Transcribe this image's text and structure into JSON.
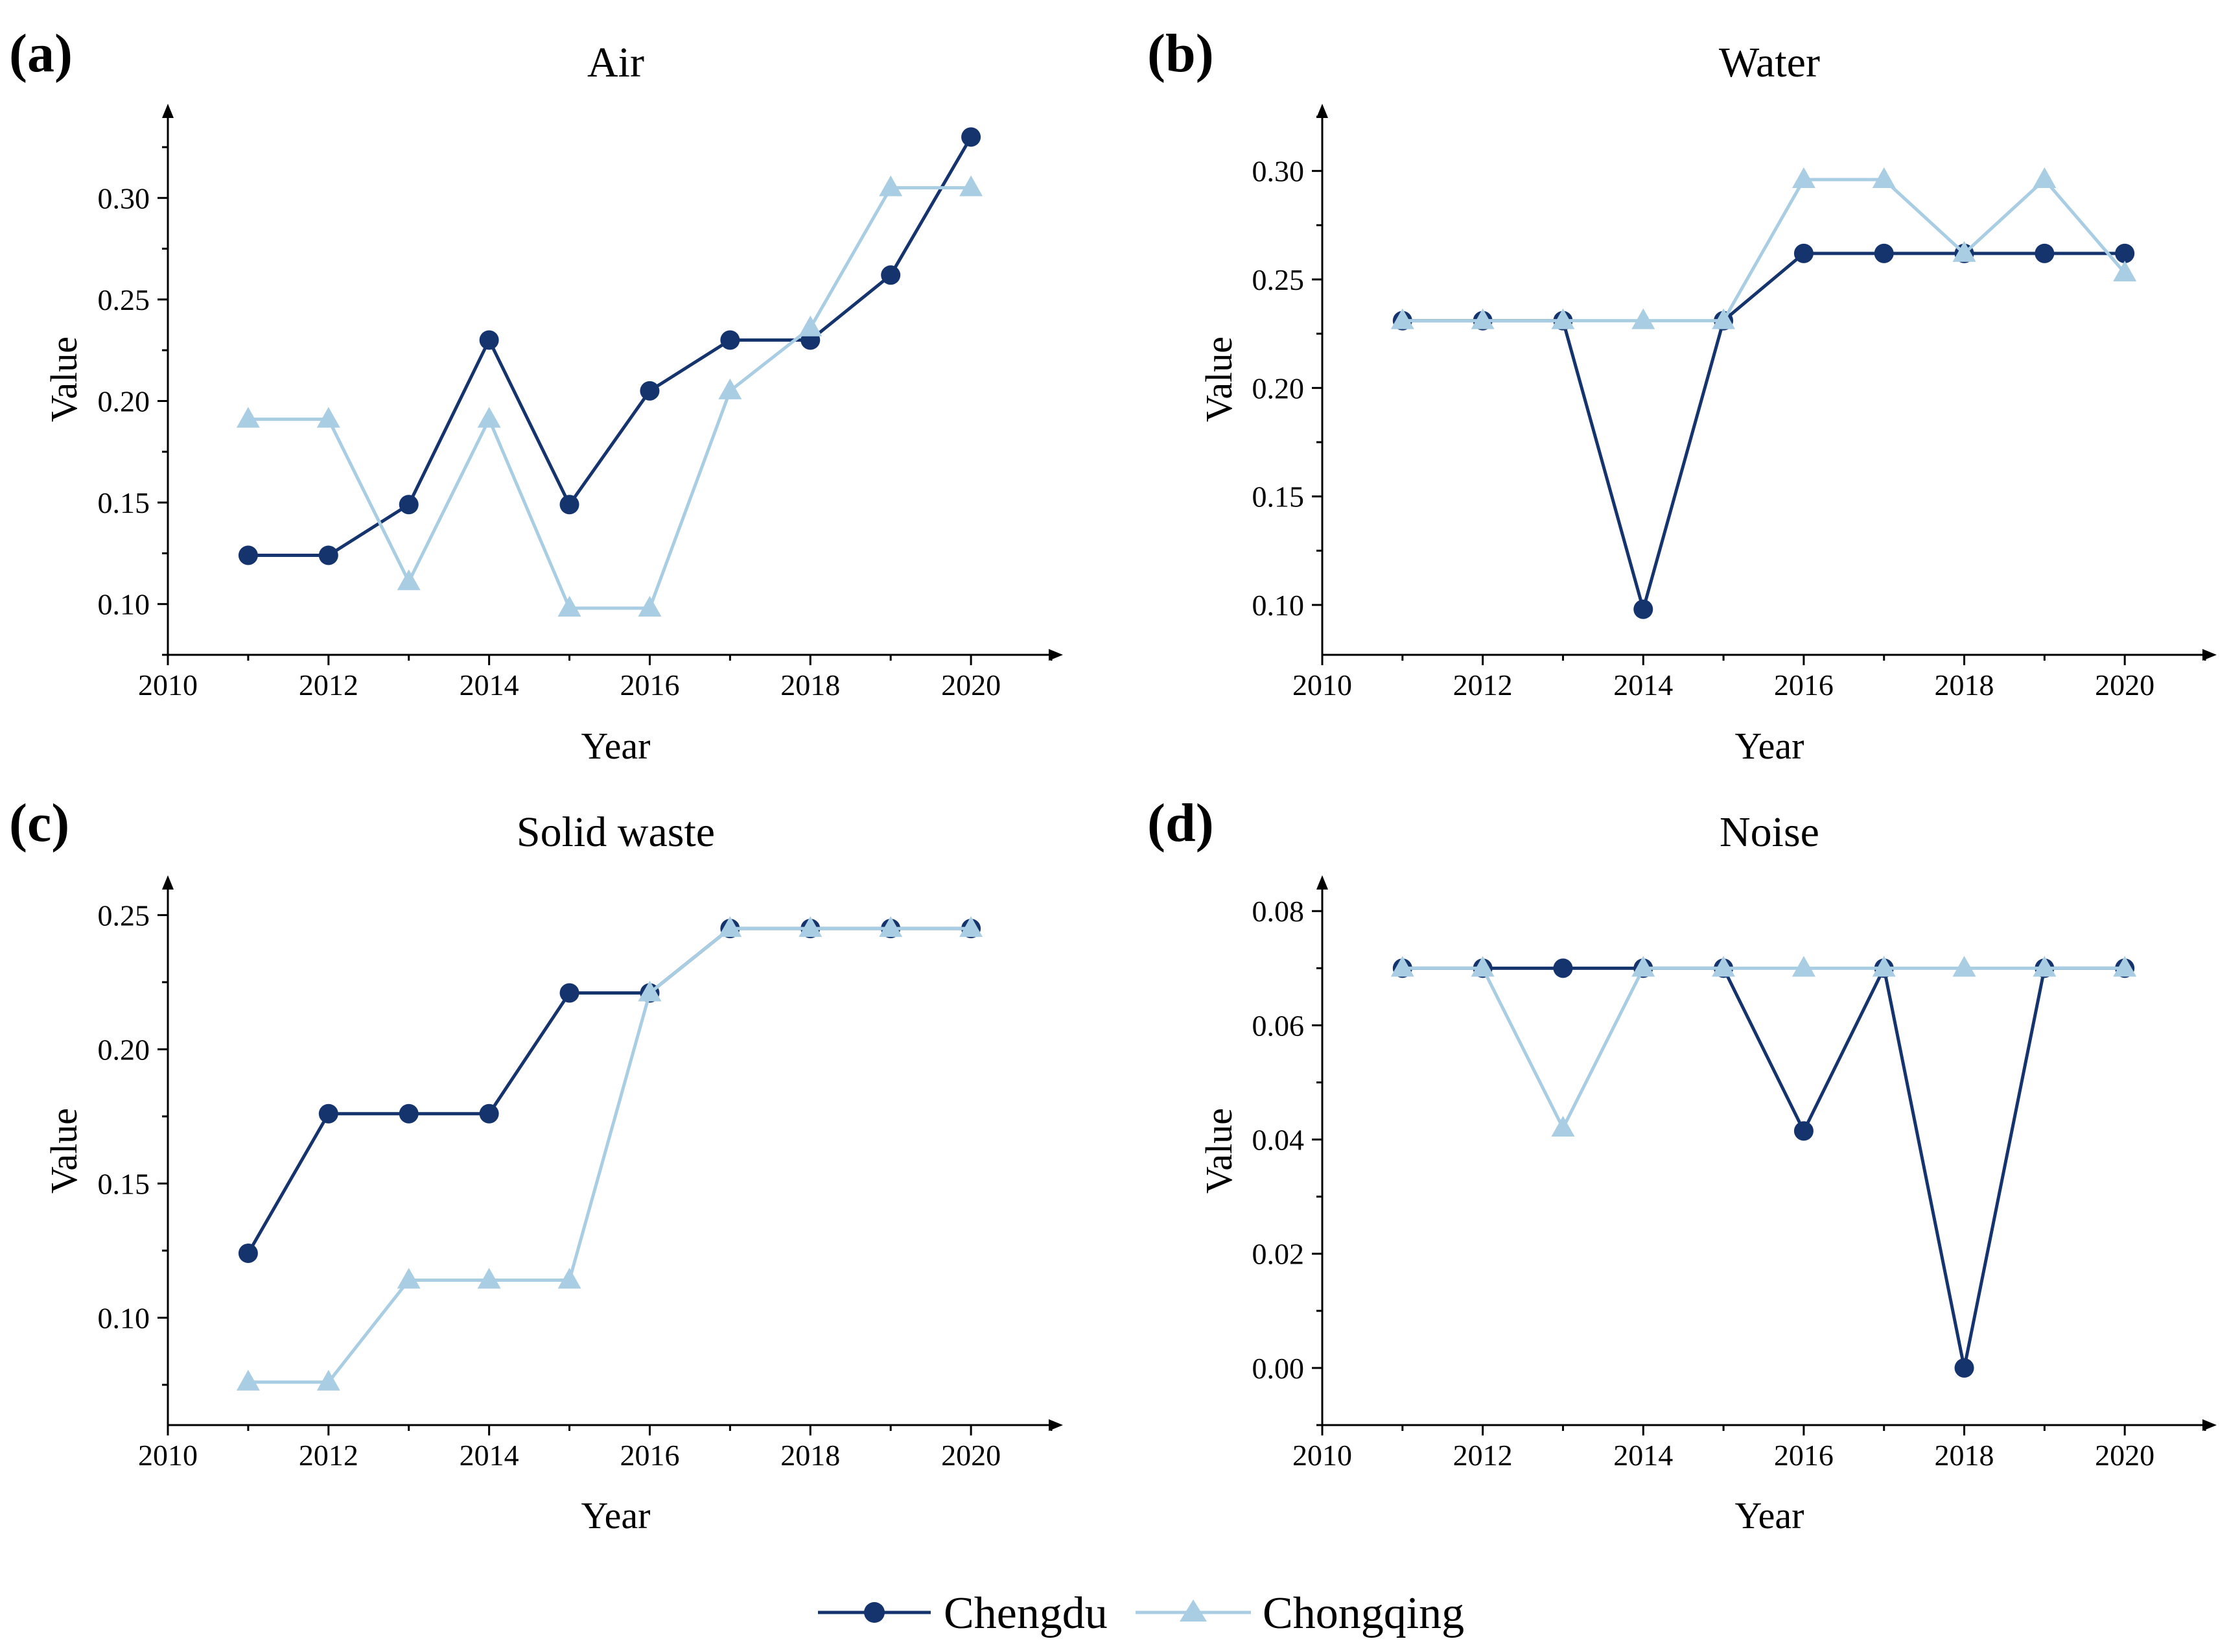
{
  "colors": {
    "chengdu": "#15346d",
    "chongqing": "#a9cde3",
    "axis": "#000000"
  },
  "legend": {
    "series": [
      {
        "name": "Chengdu",
        "marker": "circle"
      },
      {
        "name": "Chongqing",
        "marker": "triangle"
      }
    ]
  },
  "chart_data": [
    {
      "panel": "(a)",
      "type": "line",
      "title": "Air",
      "xlabel": "Year",
      "ylabel": "Value",
      "xlim": [
        2010,
        2021
      ],
      "xticks": [
        2010,
        2012,
        2014,
        2016,
        2018,
        2020
      ],
      "ylim": [
        0.075,
        0.34
      ],
      "yticks": [
        0.1,
        0.15,
        0.2,
        0.25,
        0.3
      ],
      "ytick_labels": [
        "0.10",
        "0.15",
        "0.20",
        "0.25",
        "0.30"
      ],
      "x": [
        2011,
        2012,
        2013,
        2014,
        2015,
        2016,
        2017,
        2018,
        2019,
        2020
      ],
      "series": [
        {
          "name": "Chengdu",
          "values": [
            0.124,
            0.124,
            0.149,
            0.23,
            0.149,
            0.205,
            0.23,
            0.23,
            0.262,
            0.33
          ]
        },
        {
          "name": "Chongqing",
          "values": [
            0.191,
            0.191,
            0.111,
            0.191,
            0.098,
            0.098,
            0.205,
            0.236,
            0.305,
            0.305
          ]
        }
      ]
    },
    {
      "panel": "(b)",
      "type": "line",
      "title": "Water",
      "xlabel": "Year",
      "ylabel": "Value",
      "xlim": [
        2010,
        2021
      ],
      "xticks": [
        2010,
        2012,
        2014,
        2016,
        2018,
        2020
      ],
      "ylim": [
        0.077,
        0.325
      ],
      "yticks": [
        0.1,
        0.15,
        0.2,
        0.25,
        0.3
      ],
      "ytick_labels": [
        "0.10",
        "0.15",
        "0.20",
        "0.25",
        "0.30"
      ],
      "x": [
        2011,
        2012,
        2013,
        2014,
        2015,
        2016,
        2017,
        2018,
        2019,
        2020
      ],
      "series": [
        {
          "name": "Chengdu",
          "values": [
            0.231,
            0.231,
            0.231,
            0.098,
            0.231,
            0.262,
            0.262,
            0.262,
            0.262,
            0.262
          ]
        },
        {
          "name": "Chongqing",
          "values": [
            0.231,
            0.231,
            0.231,
            0.231,
            0.231,
            0.296,
            0.296,
            0.262,
            0.296,
            0.253
          ]
        }
      ]
    },
    {
      "panel": "(c)",
      "type": "line",
      "title": "Solid waste",
      "xlabel": "Year",
      "ylabel": "Value",
      "xlim": [
        2010,
        2021
      ],
      "xticks": [
        2010,
        2012,
        2014,
        2016,
        2018,
        2020
      ],
      "ylim": [
        0.06,
        0.26
      ],
      "yticks": [
        0.1,
        0.15,
        0.2,
        0.25
      ],
      "ytick_labels": [
        "0.10",
        "0.15",
        "0.20",
        "0.25"
      ],
      "x": [
        2011,
        2012,
        2013,
        2014,
        2015,
        2016,
        2017,
        2018,
        2019,
        2020
      ],
      "series": [
        {
          "name": "Chengdu",
          "values": [
            0.124,
            0.176,
            0.176,
            0.176,
            0.221,
            0.221,
            0.245,
            0.245,
            0.245,
            0.245
          ]
        },
        {
          "name": "Chongqing",
          "values": [
            0.076,
            0.076,
            0.114,
            0.114,
            0.114,
            0.221,
            0.245,
            0.245,
            0.245,
            0.245
          ]
        }
      ]
    },
    {
      "panel": "(d)",
      "type": "line",
      "title": "Noise",
      "xlabel": "Year",
      "ylabel": "Value",
      "xlim": [
        2010,
        2021
      ],
      "xticks": [
        2010,
        2012,
        2014,
        2016,
        2018,
        2020
      ],
      "ylim": [
        -0.01,
        0.084
      ],
      "yticks": [
        0.0,
        0.02,
        0.04,
        0.06,
        0.08
      ],
      "ytick_labels": [
        "0.00",
        "0.02",
        "0.04",
        "0.06",
        "0.08"
      ],
      "x": [
        2011,
        2012,
        2013,
        2014,
        2015,
        2016,
        2017,
        2018,
        2019,
        2020
      ],
      "series": [
        {
          "name": "Chengdu",
          "values": [
            0.07,
            0.07,
            0.07,
            0.07,
            0.07,
            0.0415,
            0.07,
            0.0,
            0.07,
            0.07
          ]
        },
        {
          "name": "Chongqing",
          "values": [
            0.07,
            0.07,
            0.042,
            0.07,
            0.07,
            0.07,
            0.07,
            0.07,
            0.07,
            0.07
          ]
        }
      ]
    }
  ]
}
